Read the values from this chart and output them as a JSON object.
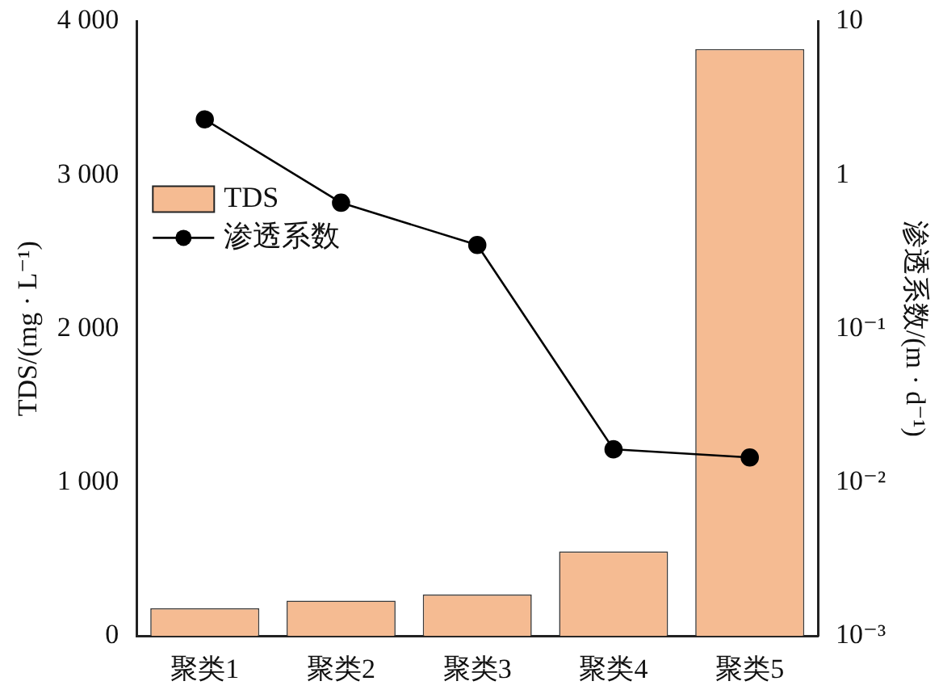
{
  "chart_data": {
    "type": "bar",
    "categories": [
      "聚类1",
      "聚类2",
      "聚类3",
      "聚类4",
      "聚类5"
    ],
    "series": [
      {
        "name": "TDS",
        "color": "#f5bb92",
        "values": [
          180,
          230,
          270,
          550,
          3820
        ]
      },
      {
        "name": "渗透系数",
        "type": "line",
        "axis": "y2",
        "color": "#000000",
        "marker": "circle",
        "values": [
          2.3,
          0.66,
          0.35,
          0.0164,
          0.0145
        ]
      }
    ],
    "ylabel": "TDS/(mg · L⁻¹)",
    "y2label": "渗透系数/(m · d⁻¹)",
    "ylim": [
      0,
      4000
    ],
    "yticks": [
      0,
      {
        "value": 1000,
        "label": "1 000"
      },
      {
        "value": 2000,
        "label": "2 000"
      },
      {
        "value": 3000,
        "label": "3 000"
      },
      {
        "value": 4000,
        "label": "4 000"
      }
    ],
    "y2lim": [
      0.001,
      10
    ],
    "y2ticks": [
      {
        "value": 0.001,
        "label": "10⁻³"
      },
      {
        "value": 0.01,
        "label": "10⁻²"
      },
      {
        "value": 0.1,
        "label": "10⁻¹"
      },
      1,
      10
    ],
    "log": "y2",
    "grid": false,
    "legend": "top left"
  }
}
